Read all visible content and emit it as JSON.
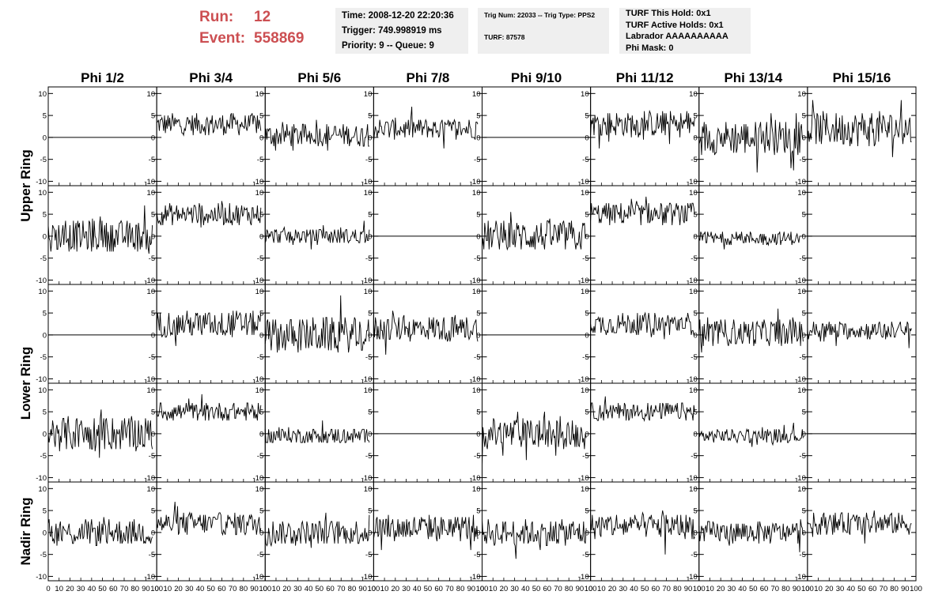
{
  "header": {
    "run_label": "Run:",
    "run_value": "12",
    "event_label": "Event:",
    "event_value": "558869"
  },
  "info_box_1": {
    "time": "Time: 2008-12-20 22:20:36",
    "trigger": "Trigger: 749.998919 ms",
    "priority": "Priority: 9 -- Queue: 9"
  },
  "info_box_2": {
    "trig": "Trig Num: 22033 -- Trig Type: PPS2",
    "turf": "TURF: 87578"
  },
  "info_box_3": {
    "this_hold": "TURF This Hold: 0x1",
    "active_holds": "TURF Active Holds: 0x1",
    "labrador": "Labrador AAAAAAAAAA",
    "phi_mask": "Phi Mask: 0"
  },
  "colors": {
    "accent": "#cc4f52",
    "panel_bg": "#efefef",
    "trace": "#000000"
  },
  "chart_data": {
    "type": "line",
    "columns": [
      "Phi 1/2",
      "Phi 3/4",
      "Phi 5/6",
      "Phi 7/8",
      "Phi 9/10",
      "Phi 11/12",
      "Phi 13/14",
      "Phi 15/16"
    ],
    "row_groups": [
      "Upper Ring",
      "Lower Ring",
      "Nadir Ring"
    ],
    "xlim": [
      0,
      100
    ],
    "ylim": [
      -11,
      11.5
    ],
    "x_ticks": [
      "0",
      "10",
      "20",
      "30",
      "40",
      "50",
      "60",
      "70",
      "80",
      "90",
      "100"
    ],
    "y_ticks": [
      "10",
      "5",
      "0",
      "-5",
      "-10"
    ],
    "panels": [
      [
        {
          "mean": 0,
          "amp": 0
        },
        {
          "mean": 3,
          "amp": 2.4
        },
        {
          "mean": 0.5,
          "amp": 2.6
        },
        {
          "mean": 2,
          "amp": 2.4
        },
        {
          "mean": 0,
          "amp": 0
        },
        {
          "mean": 3,
          "amp": 3
        },
        {
          "mean": 0,
          "amp": 4
        },
        {
          "mean": 2,
          "amp": 4
        }
      ],
      [
        {
          "mean": 0,
          "amp": 3.5
        },
        {
          "mean": 5,
          "amp": 2.5
        },
        {
          "mean": 0,
          "amp": 1.8
        },
        {
          "mean": 0,
          "amp": 0
        },
        {
          "mean": 0,
          "amp": 3.5
        },
        {
          "mean": 5,
          "amp": 2.5
        },
        {
          "mean": -0.5,
          "amp": 1.5
        },
        {
          "mean": 0,
          "amp": 0
        }
      ],
      [
        {
          "mean": 0,
          "amp": 0
        },
        {
          "mean": 2.5,
          "amp": 3
        },
        {
          "mean": 0,
          "amp": 4
        },
        {
          "mean": 1.5,
          "amp": 3
        },
        {
          "mean": 0,
          "amp": 0
        },
        {
          "mean": 2.5,
          "amp": 2.5
        },
        {
          "mean": 0.5,
          "amp": 3
        },
        {
          "mean": 1,
          "amp": 2
        }
      ],
      [
        {
          "mean": 0,
          "amp": 4
        },
        {
          "mean": 5,
          "amp": 2
        },
        {
          "mean": -0.5,
          "amp": 1.8
        },
        {
          "mean": 0,
          "amp": 0
        },
        {
          "mean": 0,
          "amp": 3.5
        },
        {
          "mean": 5,
          "amp": 2
        },
        {
          "mean": -0.5,
          "amp": 1.5
        },
        {
          "mean": 0,
          "amp": 0
        }
      ],
      [
        {
          "mean": 0,
          "amp": 3
        },
        {
          "mean": 2,
          "amp": 2.6
        },
        {
          "mean": 0,
          "amp": 2.8
        },
        {
          "mean": 1,
          "amp": 3
        },
        {
          "mean": 0,
          "amp": 3
        },
        {
          "mean": 1.5,
          "amp": 3
        },
        {
          "mean": 0,
          "amp": 2.5
        },
        {
          "mean": 2,
          "amp": 2.5
        }
      ]
    ]
  }
}
